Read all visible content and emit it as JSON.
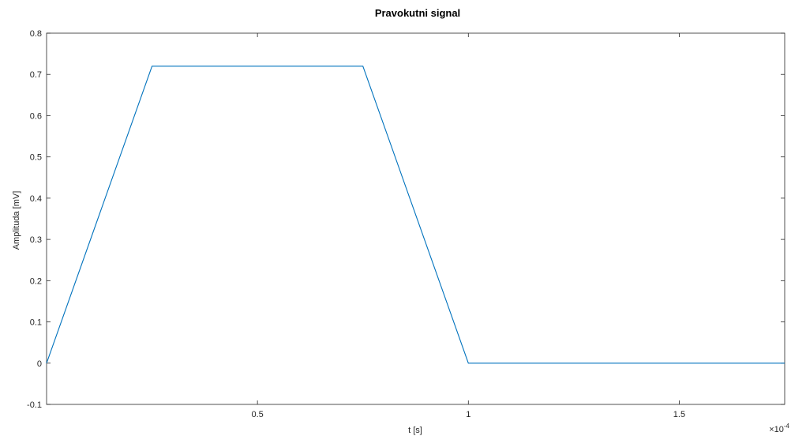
{
  "chart_data": {
    "type": "line",
    "title": "Pravokutni signal",
    "xlabel": "t [s]",
    "ylabel": "Amplituda [mV]",
    "x_exponent_label": "×10",
    "x_exponent_power": "-4",
    "xlim": [
      0,
      0.000175
    ],
    "ylim": [
      -0.1,
      0.8
    ],
    "xticks": [
      5e-05,
      0.0001,
      0.00015
    ],
    "xtick_labels": [
      "0.5",
      "1",
      "1.5"
    ],
    "yticks": [
      -0.1,
      0,
      0.1,
      0.2,
      0.3,
      0.4,
      0.5,
      0.6,
      0.7,
      0.8
    ],
    "ytick_labels": [
      "-0.1",
      "0",
      "0.1",
      "0.2",
      "0.3",
      "0.4",
      "0.5",
      "0.6",
      "0.7",
      "0.8"
    ],
    "grid": false,
    "series": [
      {
        "color": "#0072bd",
        "x": [
          0,
          2.5e-05,
          7.5e-05,
          0.0001,
          0.000175
        ],
        "y": [
          0,
          0.72,
          0.72,
          0,
          0
        ]
      }
    ]
  }
}
